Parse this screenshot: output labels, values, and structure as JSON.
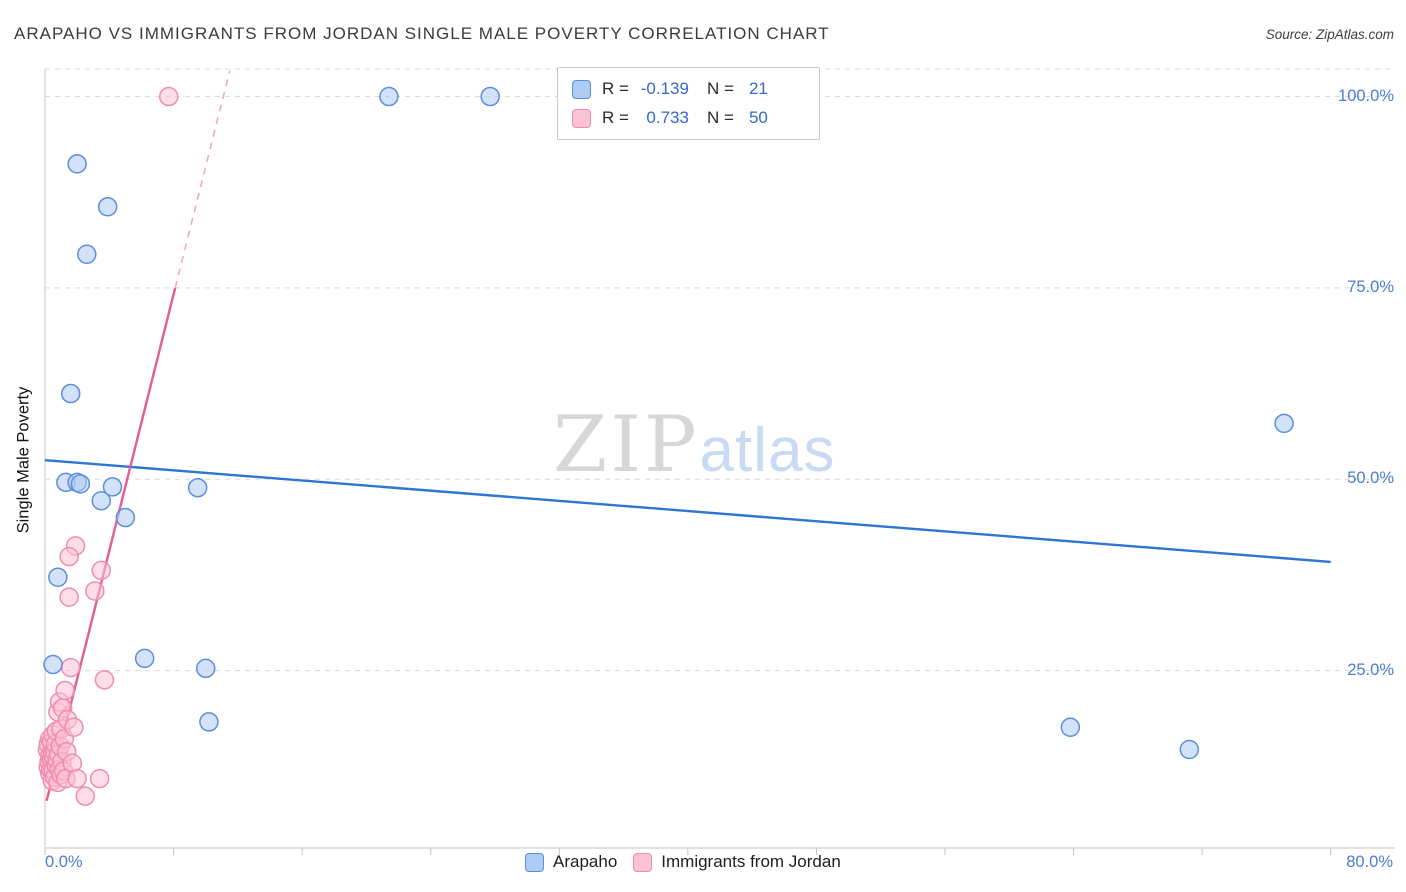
{
  "header": {
    "title": "ARAPAHO VS IMMIGRANTS FROM JORDAN SINGLE MALE POVERTY CORRELATION CHART",
    "source": "Source: ZipAtlas.com"
  },
  "watermark": {
    "zip": "ZIP",
    "atlas": "atlas"
  },
  "correlation_legend": {
    "rows": [
      {
        "series": "Arapaho",
        "r_label": "R =",
        "r_value": "-0.139",
        "n_label": "N =",
        "n_value": "21"
      },
      {
        "series": "Immigrants from Jordan",
        "r_label": "R =",
        "r_value": "0.733",
        "n_label": "N =",
        "n_value": "50"
      }
    ]
  },
  "bottom_legend": {
    "items": [
      {
        "key": "arapaho",
        "label": "Arapaho"
      },
      {
        "key": "jordan",
        "label": "Immigrants from Jordan"
      }
    ]
  },
  "axes": {
    "y_ticks": [
      {
        "label": "100.0%",
        "value": 100
      },
      {
        "label": "75.0%",
        "value": 75
      },
      {
        "label": "50.0%",
        "value": 50
      },
      {
        "label": "25.0%",
        "value": 25
      }
    ],
    "x_ticks": [
      {
        "label": "0.0%",
        "value": 0
      },
      {
        "label": "80.0%",
        "value": 80
      }
    ]
  },
  "colors": {
    "tick_label": "#4A7DD2",
    "gridline": "#d9d9d9",
    "axis_line": "#c4c4c4"
  },
  "chart_data": {
    "type": "scatter",
    "title": "ARAPAHO VS IMMIGRANTS FROM JORDAN SINGLE MALE POVERTY CORRELATION CHART",
    "xlabel": "",
    "ylabel": "Single Male Poverty",
    "x_unit": "%",
    "y_unit": "%",
    "xlim": [
      0,
      84
    ],
    "ylim": [
      0,
      103.6
    ],
    "grid": "horizontal-dashed",
    "legend_position": "bottom-center",
    "series": [
      {
        "key": "arapaho",
        "name": "Arapaho",
        "r": -0.139,
        "n": 21,
        "fill": "#AECBF4",
        "stroke": "#5B8FD9",
        "points": [
          [
            0.5,
            25.8
          ],
          [
            0.8,
            37.2
          ],
          [
            1.3,
            49.6
          ],
          [
            1.6,
            61.2
          ],
          [
            2.0,
            91.2
          ],
          [
            2.0,
            49.6
          ],
          [
            2.2,
            49.4
          ],
          [
            2.6,
            79.4
          ],
          [
            3.5,
            47.2
          ],
          [
            3.9,
            85.6
          ],
          [
            4.2,
            49.0
          ],
          [
            5.0,
            45.0
          ],
          [
            6.2,
            26.6
          ],
          [
            9.5,
            48.9
          ],
          [
            10.0,
            25.3
          ],
          [
            10.2,
            18.3
          ],
          [
            21.4,
            100.0
          ],
          [
            27.7,
            100.0
          ],
          [
            63.8,
            17.6
          ],
          [
            71.2,
            14.7
          ],
          [
            77.1,
            57.3
          ]
        ]
      },
      {
        "key": "jordan",
        "name": "Immigrants from Jordan",
        "r": 0.733,
        "n": 50,
        "fill": "#FBC3D5",
        "stroke": "#F08CB0",
        "points": [
          [
            7.7,
            100.0
          ],
          [
            1.9,
            41.3
          ],
          [
            1.5,
            39.9
          ],
          [
            3.5,
            38.1
          ],
          [
            3.1,
            35.4
          ],
          [
            1.5,
            34.6
          ],
          [
            3.7,
            23.8
          ],
          [
            0.15,
            14.6
          ],
          [
            0.2,
            12.4
          ],
          [
            0.2,
            15.4
          ],
          [
            0.25,
            13.1
          ],
          [
            0.3,
            11.6
          ],
          [
            0.3,
            13.9
          ],
          [
            0.3,
            16.1
          ],
          [
            0.35,
            12.1
          ],
          [
            0.4,
            13.4
          ],
          [
            0.4,
            15.6
          ],
          [
            0.45,
            10.6
          ],
          [
            0.45,
            14.1
          ],
          [
            0.5,
            12.0
          ],
          [
            0.5,
            16.6
          ],
          [
            0.55,
            13.6
          ],
          [
            0.6,
            11.1
          ],
          [
            0.6,
            14.4
          ],
          [
            0.65,
            15.4
          ],
          [
            0.7,
            12.6
          ],
          [
            0.7,
            17.1
          ],
          [
            0.75,
            13.4
          ],
          [
            0.8,
            10.4
          ],
          [
            0.8,
            19.6
          ],
          [
            0.85,
            14.1
          ],
          [
            0.9,
            12.1
          ],
          [
            0.9,
            20.9
          ],
          [
            0.95,
            15.1
          ],
          [
            1.0,
            11.4
          ],
          [
            1.0,
            17.4
          ],
          [
            1.05,
            13.1
          ],
          [
            1.1,
            20.1
          ],
          [
            1.15,
            11.9
          ],
          [
            1.2,
            16.1
          ],
          [
            1.25,
            22.4
          ],
          [
            1.3,
            10.9
          ],
          [
            1.35,
            14.4
          ],
          [
            1.4,
            18.6
          ],
          [
            3.4,
            10.9
          ],
          [
            1.6,
            25.4
          ],
          [
            1.7,
            12.9
          ],
          [
            1.8,
            17.6
          ],
          [
            2.0,
            10.9
          ],
          [
            2.5,
            8.6
          ]
        ]
      }
    ],
    "trend_lines": [
      {
        "key": "arapaho",
        "series": "Arapaho",
        "style": "solid",
        "color": "#2E75D4",
        "x1": 0,
        "y1": 52.5,
        "x2": 80,
        "y2": 39.2
      },
      {
        "key": "jordan",
        "series": "Immigrants from Jordan",
        "style": "solid",
        "color": "#E75C92",
        "x1": 0.1,
        "y1": 8.0,
        "x2": 8.1,
        "y2": 75.0
      },
      {
        "key": "jordan-extension",
        "series": "Immigrants from Jordan",
        "style": "dashed",
        "color": "#F2A9C4",
        "x1": 8.1,
        "y1": 75.0,
        "x2": 11.5,
        "y2": 103.4
      }
    ]
  }
}
